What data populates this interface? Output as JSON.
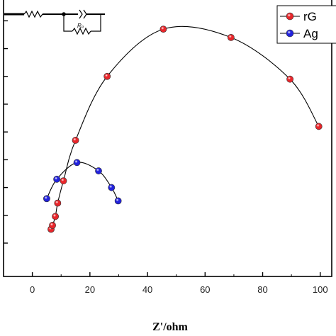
{
  "chart_data": {
    "type": "scatter",
    "xlabel": "Z'/ohm",
    "ylabel": "",
    "x_ticks": [
      0,
      20,
      40,
      60,
      80,
      100
    ],
    "xlim": [
      -10,
      104
    ],
    "ylim": [
      -6,
      44
    ],
    "grid": false,
    "legend_position": "top-right",
    "series": [
      {
        "name": "rG",
        "color": "#e8262b",
        "x": [
          6.5,
          7,
          8,
          8.8,
          10.8,
          15,
          26,
          45.5,
          69,
          89.5,
          99.5
        ],
        "y": [
          2.5,
          3.2,
          4.8,
          7.2,
          11.2,
          18.5,
          30,
          38.5,
          37,
          29.5,
          21
        ]
      },
      {
        "name": "Ag",
        "color": "#2222dd",
        "x": [
          5,
          8.5,
          15.5,
          23,
          27.5,
          29.8
        ],
        "y": [
          8,
          11.5,
          14.5,
          13,
          10,
          7.6
        ]
      }
    ]
  },
  "circuit": {
    "label": "Rₚ"
  },
  "colors": {
    "axis": "#000000",
    "fit_line": "#000000"
  }
}
